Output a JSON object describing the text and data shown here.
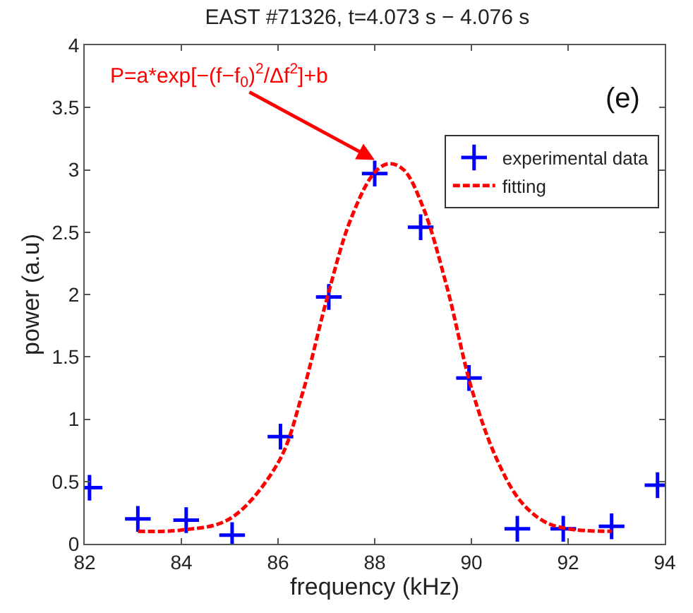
{
  "chart_data": {
    "type": "scatter",
    "title": "EAST #71326, t=4.073 s − 4.076 s",
    "xlabel": "frequency (kHz)",
    "ylabel": "power (a.u)",
    "xlim": [
      82,
      94
    ],
    "xticks": [
      82,
      84,
      86,
      88,
      90,
      92,
      94
    ],
    "ylim": [
      0,
      4
    ],
    "yticks": [
      0,
      0.5,
      1,
      1.5,
      2,
      2.5,
      3,
      3.5,
      4
    ],
    "legend": "top right",
    "series": [
      {
        "name": "experimental data",
        "marker": "cross",
        "color": "#0000ff",
        "x": [
          82.1,
          83.1,
          84.1,
          85.05,
          86.05,
          87.05,
          88.0,
          88.95,
          89.95,
          90.95,
          91.9,
          92.9,
          93.85
        ],
        "values": [
          0.45,
          0.2,
          0.19,
          0.07,
          0.86,
          1.98,
          2.97,
          2.54,
          1.33,
          0.12,
          0.12,
          0.14,
          0.47
        ]
      },
      {
        "name": "fitting",
        "type": "line",
        "line_style": "dashed",
        "color": "#ff0000",
        "x": [
          83.1,
          84,
          85,
          86,
          86.5,
          87,
          87.5,
          88,
          88.3,
          88.6,
          89,
          89.5,
          90,
          90.5,
          91,
          91.5,
          92,
          92.9
        ],
        "values": [
          0.1,
          0.11,
          0.2,
          0.65,
          1.2,
          1.95,
          2.6,
          2.98,
          3.05,
          3.0,
          2.7,
          2.05,
          1.25,
          0.7,
          0.35,
          0.18,
          0.12,
          0.1
        ]
      }
    ],
    "annotations": [
      {
        "text": "P=a*exp[−(f−f$_{0}$)$^{2}$/Δf$^{2}$]+b",
        "x": 88.0,
        "y": 3.08
      },
      "(e)"
    ]
  }
}
